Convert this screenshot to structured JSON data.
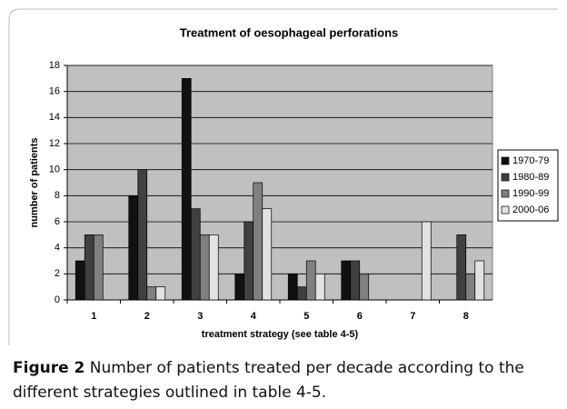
{
  "chart_data": {
    "type": "bar",
    "title": "Treatment of oesophageal perforations",
    "xlabel": "treatment strategy (see table 4-5)",
    "ylabel": "number of patients",
    "categories": [
      "1",
      "2",
      "3",
      "4",
      "5",
      "6",
      "7",
      "8"
    ],
    "series": [
      {
        "name": "1970-79",
        "color": "#111111",
        "values": [
          3,
          8,
          17,
          2,
          2,
          3,
          0,
          0
        ]
      },
      {
        "name": "1980-89",
        "color": "#404040",
        "values": [
          5,
          10,
          7,
          6,
          1,
          3,
          0,
          5
        ]
      },
      {
        "name": "1990-99",
        "color": "#808080",
        "values": [
          5,
          1,
          5,
          9,
          3,
          2,
          0,
          2
        ]
      },
      {
        "name": "2000-06",
        "color": "#e2e2e2",
        "values": [
          0,
          1,
          5,
          7,
          2,
          0,
          6,
          3
        ]
      }
    ],
    "ylim": [
      0,
      18
    ],
    "yticks": [
      0,
      2,
      4,
      6,
      8,
      10,
      12,
      14,
      16,
      18
    ],
    "grid": true,
    "legend": "right",
    "plot_background": "#c0c0c0"
  },
  "caption": {
    "label": "Figure 2",
    "text": "Number of patients treated per decade according to the different strategies outlined in table 4-5."
  }
}
